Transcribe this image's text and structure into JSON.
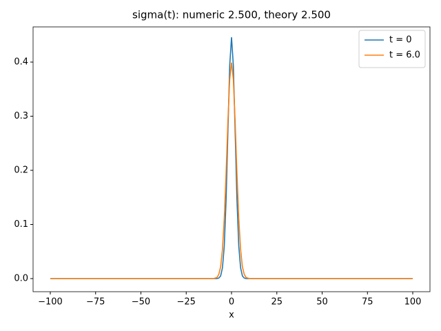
{
  "chart_data": {
    "type": "line",
    "title": "sigma(t): numeric 2.500, theory 2.500",
    "x_label": "x",
    "x": [
      -100,
      -20,
      -12,
      -10,
      -9,
      -8,
      -7,
      -6,
      -5,
      -4,
      -3,
      -2,
      -1,
      0,
      1,
      2,
      3,
      4,
      5,
      6,
      7,
      8,
      9,
      10,
      12,
      20,
      100
    ],
    "series": [
      {
        "name": "t = 0",
        "color": "#1f77b4",
        "values": [
          0,
          0,
          0,
          0,
          0,
          0,
          0.001,
          0.005,
          0.02,
          0.06,
          0.145,
          0.271,
          0.394,
          0.446,
          0.394,
          0.271,
          0.145,
          0.06,
          0.02,
          0.005,
          0.001,
          0,
          0,
          0,
          0,
          0,
          0
        ]
      },
      {
        "name": "t = 6.0",
        "color": "#ff7f0e",
        "values": [
          0,
          0,
          0,
          0,
          0.001,
          0.002,
          0.008,
          0.022,
          0.054,
          0.111,
          0.194,
          0.29,
          0.368,
          0.399,
          0.368,
          0.29,
          0.194,
          0.111,
          0.054,
          0.022,
          0.008,
          0.002,
          0.001,
          0,
          0,
          0,
          0
        ]
      }
    ],
    "xlim": [
      -109.5,
      109.5
    ],
    "ylim": [
      -0.0242,
      0.465
    ],
    "xticks": [
      {
        "value": -100,
        "label": "−100"
      },
      {
        "value": -75,
        "label": "−75"
      },
      {
        "value": -50,
        "label": "−50"
      },
      {
        "value": -25,
        "label": "−25"
      },
      0,
      25,
      50,
      75,
      100
    ],
    "yticks": [
      {
        "value": 0,
        "label": "0.0"
      },
      0.1,
      0.2,
      0.3,
      0.4
    ],
    "legend": "upper right"
  }
}
